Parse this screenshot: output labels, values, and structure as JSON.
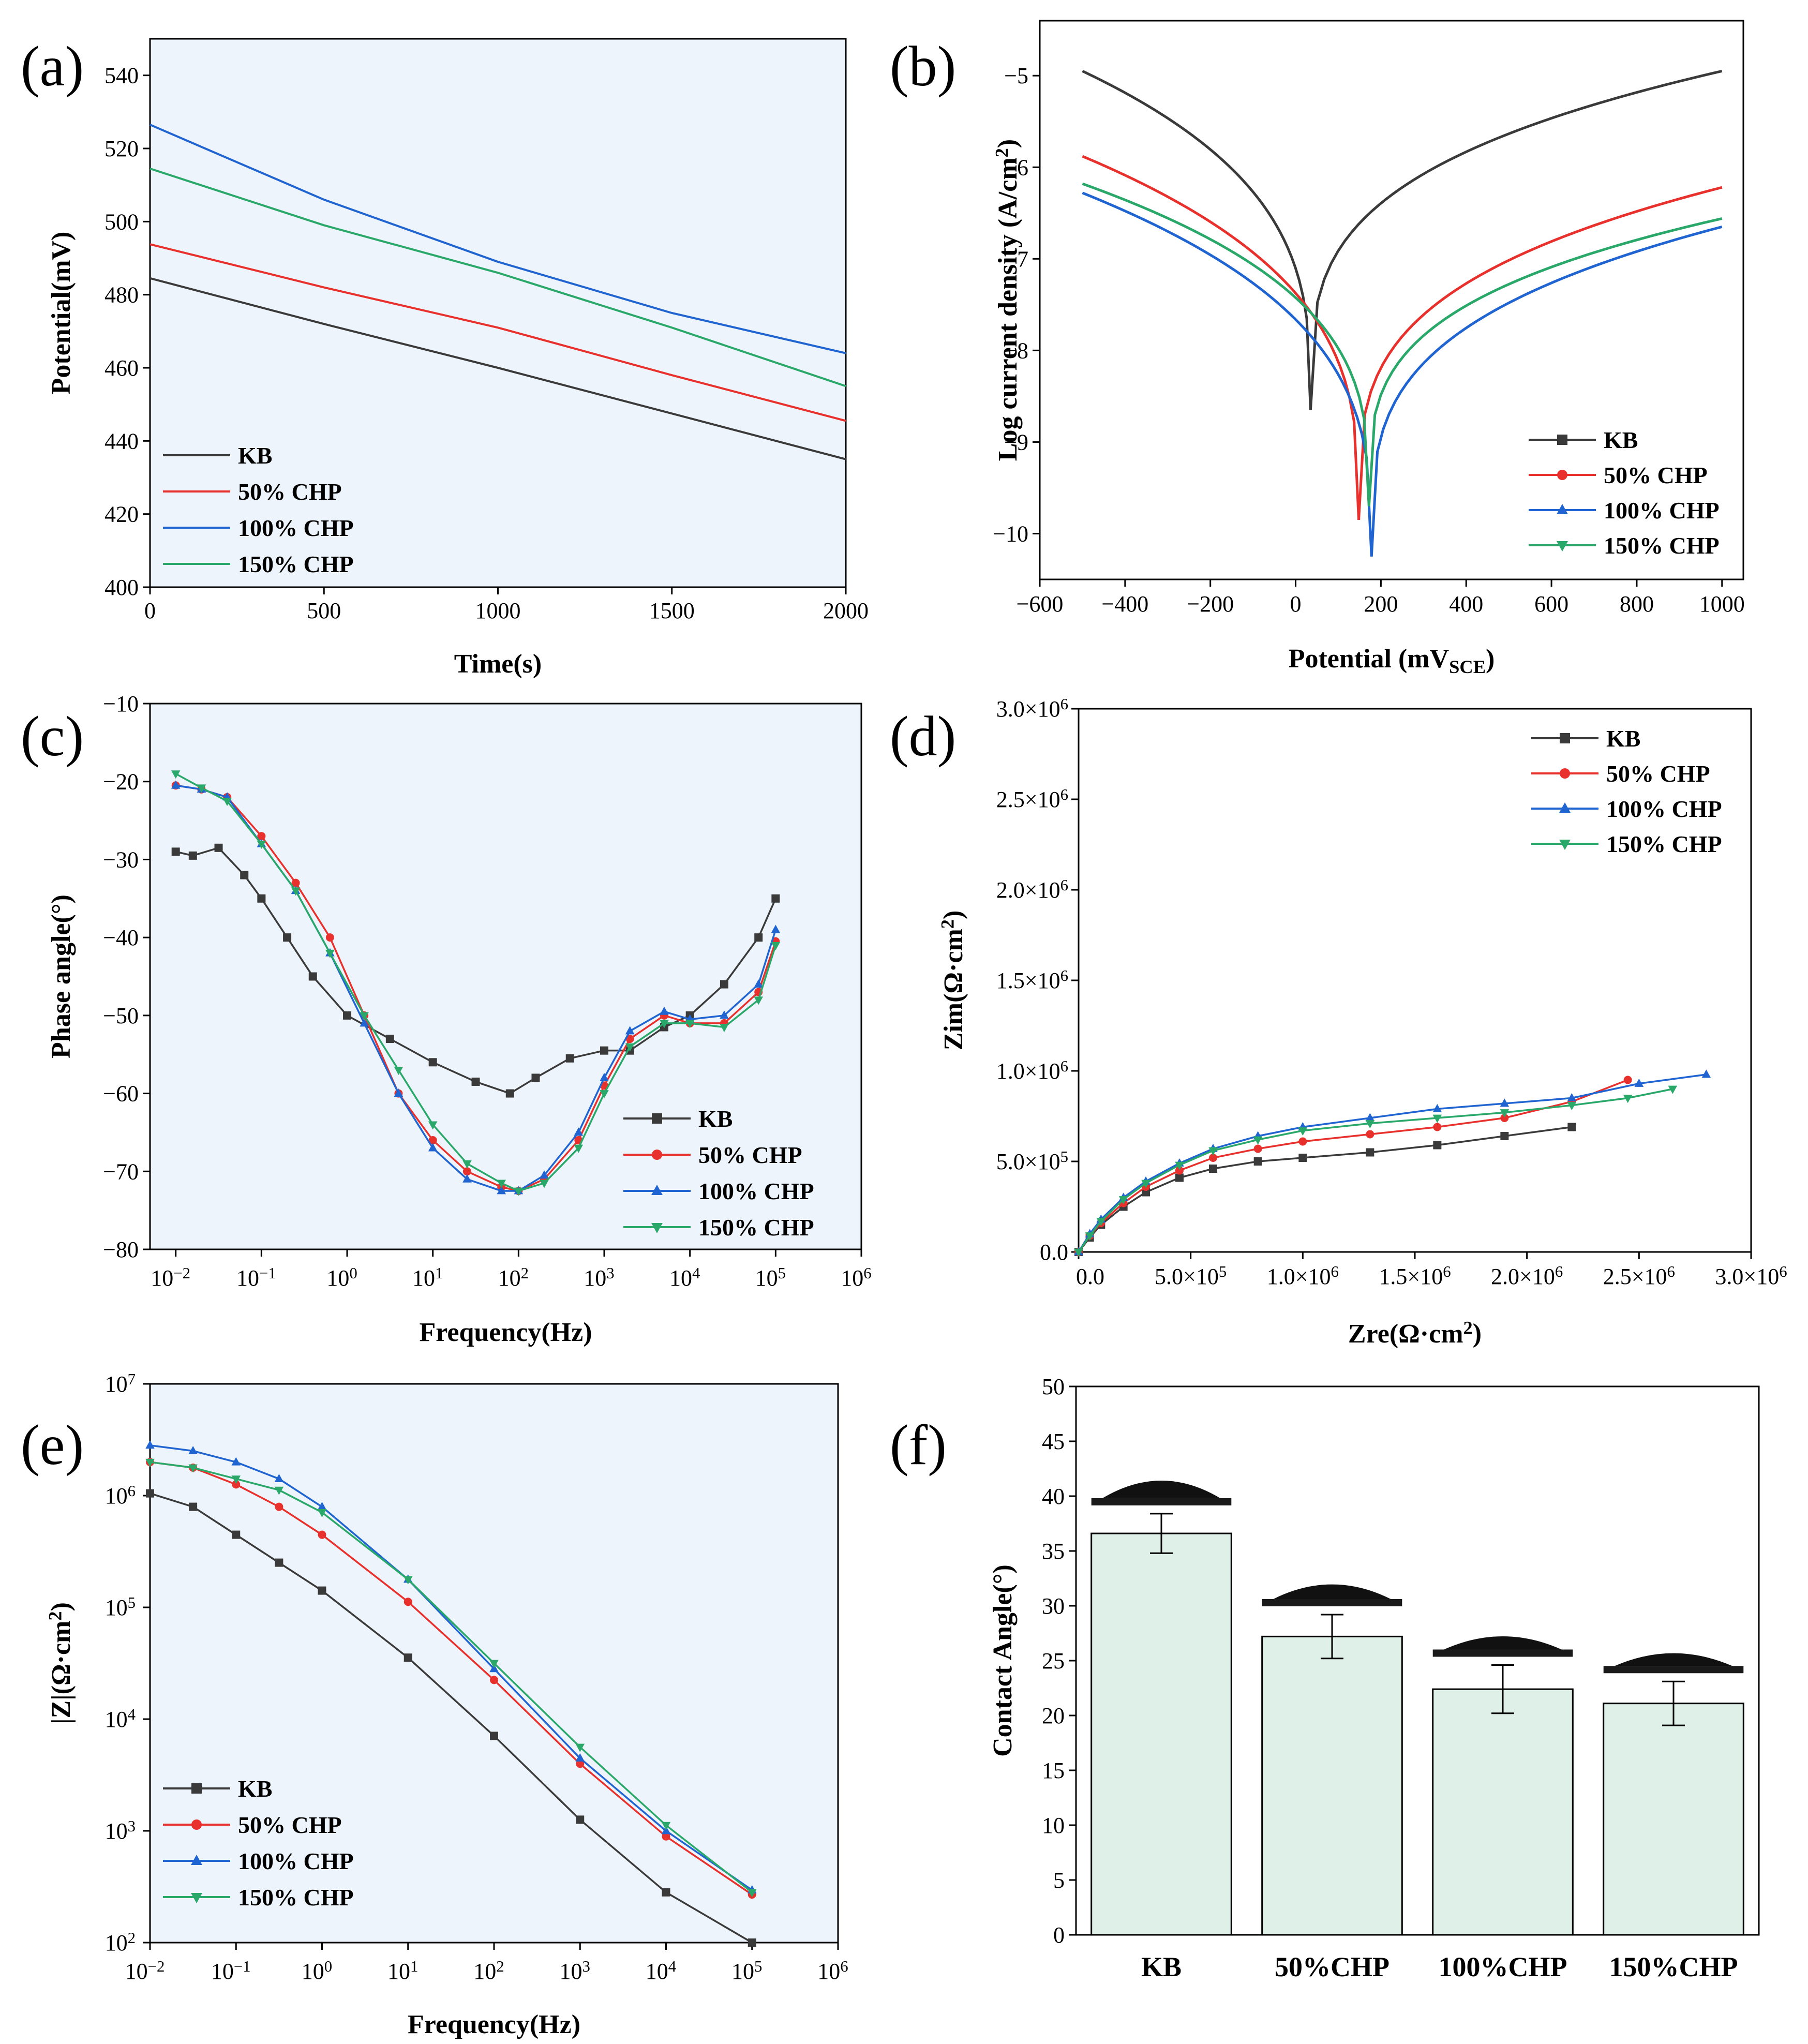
{
  "colors": {
    "KB": "#3a3a3a",
    "CHP50": "#e8302c",
    "CHP100": "#1f64d0",
    "CHP150": "#2aa86a",
    "plot_bg": "#eef4fb",
    "bar_fill": "#dff0e8"
  },
  "chart_data": [
    {
      "id": "a",
      "panel_label": "(a)",
      "type": "line",
      "xlabel": "Time(s)",
      "ylabel": "Potential(mV)",
      "xlim": [
        0,
        2000
      ],
      "ylim": [
        400,
        550
      ],
      "xticks": [
        0,
        500,
        1000,
        1500,
        2000
      ],
      "yticks": [
        400,
        420,
        440,
        460,
        480,
        500,
        520,
        540
      ],
      "xtick_labels": [
        "0",
        "500",
        "1000",
        "1500",
        "2000"
      ],
      "ytick_labels": [
        "400",
        "420",
        "440",
        "460",
        "480",
        "500",
        "520",
        "540"
      ],
      "legend": [
        "KB",
        "50% CHP",
        "100% CHP",
        "150% CHP"
      ],
      "series": [
        {
          "name": "KB",
          "x": [
            0,
            500,
            1000,
            1500,
            2000
          ],
          "y": [
            484.5,
            472,
            460,
            447.5,
            435
          ]
        },
        {
          "name": "50% CHP",
          "x": [
            0,
            500,
            1000,
            1500,
            2000
          ],
          "y": [
            493.8,
            482,
            471,
            458,
            445.5
          ]
        },
        {
          "name": "100% CHP",
          "x": [
            0,
            500,
            1000,
            1500,
            2000
          ],
          "y": [
            526.5,
            506,
            489,
            475,
            464
          ]
        },
        {
          "name": "150% CHP",
          "x": [
            0,
            500,
            1000,
            1500,
            2000
          ],
          "y": [
            514.5,
            499,
            486,
            471,
            455
          ]
        }
      ]
    },
    {
      "id": "b",
      "panel_label": "(b)",
      "type": "line",
      "xlabel": "Potential (mV",
      "xlabel_sub": "SCE",
      "xlabel_end": ")",
      "ylabel": "Log current density (A/cm",
      "ylabel_sup": "2",
      "ylabel_end": ")",
      "xlim": [
        -600,
        1050
      ],
      "ylim": [
        -10.5,
        -4.4
      ],
      "xticks": [
        -600,
        -400,
        -200,
        0,
        200,
        400,
        600,
        800,
        1000
      ],
      "yticks": [
        -10,
        -9,
        -8,
        -7,
        -6,
        -5
      ],
      "xtick_labels": [
        "−600",
        "−400",
        "−200",
        "0",
        "200",
        "400",
        "600",
        "800",
        "1000"
      ],
      "ytick_labels": [
        "−10",
        "−9",
        "−8",
        "−7",
        "−6",
        "−5"
      ],
      "legend": [
        "KB",
        "50% CHP",
        "100% CHP",
        "150% CHP"
      ],
      "series": [
        {
          "name": "KB",
          "ecorr": 35,
          "min": -8.65,
          "start": -4.95,
          "end": -4.95
        },
        {
          "name": "50% CHP",
          "ecorr": 148,
          "min": -9.85,
          "start": -5.88,
          "end": -6.22
        },
        {
          "name": "100% CHP",
          "ecorr": 178,
          "min": -10.25,
          "start": -6.28,
          "end": -6.65
        },
        {
          "name": "150% CHP",
          "ecorr": 172,
          "min": -9.7,
          "start": -6.18,
          "end": -6.56
        }
      ]
    },
    {
      "id": "c",
      "panel_label": "(c)",
      "type": "scatter",
      "xlabel": "Frequency(Hz)",
      "ylabel": "Phase angle(°)",
      "xscale": "log",
      "xlim_log": [
        -2.3,
        6
      ],
      "ylim": [
        -80,
        -10
      ],
      "ytick_labels": [
        "−80",
        "−70",
        "−60",
        "−50",
        "−40",
        "−30",
        "−20",
        "−10"
      ],
      "yticks": [
        -80,
        -70,
        -60,
        -50,
        -40,
        -30,
        -20,
        -10
      ],
      "xticks_log": [
        -2,
        -1,
        0,
        1,
        2,
        3,
        4,
        5,
        6
      ],
      "xtick_bases": [
        "10",
        "10",
        "10",
        "10",
        "10",
        "10",
        "10",
        "10",
        "10"
      ],
      "xtick_exps": [
        "−2",
        "−1",
        "0",
        "1",
        "2",
        "3",
        "4",
        "5",
        "6"
      ],
      "legend": [
        "KB",
        "50% CHP",
        "100% CHP",
        "150% CHP"
      ],
      "series": [
        {
          "name": "KB",
          "logf": [
            -2,
            -1.8,
            -1.5,
            -1.2,
            -1,
            -0.7,
            -0.4,
            0,
            0.5,
            1,
            1.5,
            1.9,
            2.2,
            2.6,
            3,
            3.3,
            3.7,
            4,
            4.4,
            4.8,
            5
          ],
          "y": [
            -29,
            -29.5,
            -28.5,
            -32,
            -35,
            -40,
            -45,
            -50,
            -53,
            -56,
            -58.5,
            -60,
            -58,
            -55.5,
            -54.5,
            -54.5,
            -51.5,
            -50,
            -46,
            -40,
            -35
          ]
        },
        {
          "name": "50% CHP",
          "logf": [
            -2,
            -1.7,
            -1.4,
            -1,
            -0.6,
            -0.2,
            0.2,
            0.6,
            1,
            1.4,
            1.8,
            2,
            2.3,
            2.7,
            3,
            3.3,
            3.7,
            4,
            4.4,
            4.8,
            5
          ],
          "y": [
            -20.5,
            -21,
            -22,
            -27,
            -33,
            -40,
            -50,
            -60,
            -66,
            -70,
            -72,
            -72.5,
            -71,
            -66,
            -59,
            -53,
            -50,
            -51,
            -51,
            -47,
            -40.5
          ]
        },
        {
          "name": "100% CHP",
          "logf": [
            -2,
            -1.7,
            -1.4,
            -1,
            -0.6,
            -0.2,
            0.2,
            0.6,
            1,
            1.4,
            1.8,
            2,
            2.3,
            2.7,
            3,
            3.3,
            3.7,
            4,
            4.4,
            4.8,
            5
          ],
          "y": [
            -20.5,
            -21,
            -22,
            -28,
            -34,
            -42,
            -51,
            -60,
            -67,
            -71,
            -72.5,
            -72.5,
            -70.5,
            -65,
            -58,
            -52,
            -49.5,
            -50.5,
            -50,
            -46,
            -39
          ]
        },
        {
          "name": "150% CHP",
          "logf": [
            -2,
            -1.7,
            -1.4,
            -1,
            -0.6,
            -0.2,
            0.2,
            0.6,
            1,
            1.4,
            1.8,
            2,
            2.3,
            2.7,
            3,
            3.3,
            3.7,
            4,
            4.4,
            4.8,
            5
          ],
          "y": [
            -19,
            -20.8,
            -22.5,
            -28,
            -34,
            -42,
            -50,
            -57,
            -64,
            -69,
            -71.5,
            -72.5,
            -71.5,
            -67,
            -60,
            -54,
            -51,
            -51,
            -51.5,
            -48,
            -41
          ]
        }
      ]
    },
    {
      "id": "d",
      "panel_label": "(d)",
      "type": "scatter",
      "xlabel": "Zre(Ω·cm",
      "xlabel_sup": "2",
      "xlabel_end": ")",
      "ylabel": "Zim(Ω·cm",
      "ylabel_sup": "2",
      "ylabel_end": ")",
      "xlim": [
        0,
        3000000
      ],
      "ylim": [
        0,
        3000000
      ],
      "xticks": [
        0,
        500000,
        1000000,
        1500000,
        2000000,
        2500000,
        3000000
      ],
      "yticks": [
        0,
        500000,
        1000000,
        1500000,
        2000000,
        2500000,
        3000000
      ],
      "xtick_mant": [
        "0.0",
        "5.0×10",
        "1.0×10",
        "1.5×10",
        "2.0×10",
        "2.5×10",
        "3.0×10"
      ],
      "xtick_exp": [
        "",
        "5",
        "6",
        "6",
        "6",
        "6",
        "6"
      ],
      "ytick_mant": [
        "0.0",
        "5.0×10",
        "1.0×10",
        "1.5×10",
        "2.0×10",
        "2.5×10",
        "3.0×10"
      ],
      "ytick_exp": [
        "",
        "5",
        "6",
        "6",
        "6",
        "6",
        "6"
      ],
      "legend": [
        "KB",
        "50% CHP",
        "100% CHP",
        "150% CHP"
      ],
      "series": [
        {
          "name": "KB",
          "x": [
            0,
            50000,
            100000,
            200000,
            300000,
            450000,
            600000,
            800000,
            1000000,
            1300000,
            1600000,
            1900000,
            2200000
          ],
          "y": [
            0,
            80000,
            150000,
            250000,
            330000,
            410000,
            460000,
            500000,
            520000,
            550000,
            590000,
            640000,
            690000
          ]
        },
        {
          "name": "50% CHP",
          "x": [
            0,
            50000,
            100000,
            200000,
            300000,
            450000,
            600000,
            800000,
            1000000,
            1300000,
            1600000,
            1900000,
            2200000,
            2450000
          ],
          "y": [
            0,
            90000,
            160000,
            270000,
            360000,
            450000,
            520000,
            570000,
            610000,
            650000,
            690000,
            740000,
            830000,
            950000
          ]
        },
        {
          "name": "100% CHP",
          "x": [
            0,
            50000,
            100000,
            200000,
            300000,
            450000,
            600000,
            800000,
            1000000,
            1300000,
            1600000,
            1900000,
            2200000,
            2500000,
            2800000
          ],
          "y": [
            0,
            100000,
            180000,
            300000,
            390000,
            490000,
            570000,
            640000,
            690000,
            740000,
            790000,
            820000,
            850000,
            930000,
            980000
          ]
        },
        {
          "name": "150% CHP",
          "x": [
            0,
            50000,
            100000,
            200000,
            300000,
            450000,
            600000,
            800000,
            1000000,
            1300000,
            1600000,
            1900000,
            2200000,
            2450000,
            2650000
          ],
          "y": [
            0,
            90000,
            170000,
            290000,
            380000,
            480000,
            560000,
            620000,
            670000,
            710000,
            740000,
            770000,
            810000,
            850000,
            900000
          ]
        }
      ]
    },
    {
      "id": "e",
      "panel_label": "(e)",
      "type": "scatter",
      "xlabel": "Frequency(Hz)",
      "ylabel": "|Z|(Ω·cm",
      "ylabel_sup": "2",
      "ylabel_end": ")",
      "xscale": "log",
      "yscale": "log",
      "xlim_log": [
        -2,
        6
      ],
      "ylim_log": [
        2,
        7
      ],
      "xticks_log": [
        -2,
        -1,
        0,
        1,
        2,
        3,
        4,
        5,
        6
      ],
      "yticks_log": [
        2,
        3,
        4,
        5,
        6,
        7
      ],
      "xtick_exps": [
        "−2",
        "−1",
        "0",
        "1",
        "2",
        "3",
        "4",
        "5",
        "6"
      ],
      "ytick_exps": [
        "2",
        "3",
        "4",
        "5",
        "6",
        "7"
      ],
      "tick_base": "10",
      "legend": [
        "KB",
        "50% CHP",
        "100% CHP",
        "150% CHP"
      ],
      "series": [
        {
          "name": "KB",
          "logf": [
            -2,
            -1.5,
            -1,
            -0.5,
            0,
            1,
            2,
            3,
            4,
            5
          ],
          "logz": [
            6.02,
            5.9,
            5.65,
            5.4,
            5.15,
            4.55,
            3.85,
            3.1,
            2.45,
            2.0
          ]
        },
        {
          "name": "50% CHP",
          "logf": [
            -2,
            -1.5,
            -1,
            -0.5,
            0,
            1,
            2,
            3,
            4,
            5
          ],
          "logz": [
            6.3,
            6.25,
            6.1,
            5.9,
            5.65,
            5.05,
            4.35,
            3.6,
            2.95,
            2.43
          ]
        },
        {
          "name": "100% CHP",
          "logf": [
            -2,
            -1.5,
            -1,
            -0.5,
            0,
            1,
            2,
            3,
            4,
            5
          ],
          "logz": [
            6.45,
            6.4,
            6.3,
            6.15,
            5.9,
            5.25,
            4.45,
            3.65,
            3.0,
            2.47
          ]
        },
        {
          "name": "150% CHP",
          "logf": [
            -2,
            -1.5,
            -1,
            -0.5,
            0,
            1,
            2,
            3,
            4,
            5
          ],
          "logz": [
            6.3,
            6.25,
            6.15,
            6.05,
            5.85,
            5.25,
            4.5,
            3.75,
            3.05,
            2.45
          ]
        }
      ]
    },
    {
      "id": "f",
      "panel_label": "(f)",
      "type": "bar",
      "xlabel": "",
      "ylabel": "Contact Angle(°)",
      "ylim": [
        0,
        50
      ],
      "yticks": [
        0,
        5,
        10,
        15,
        20,
        25,
        30,
        35,
        40,
        45,
        50
      ],
      "ytick_labels": [
        "0",
        "5",
        "10",
        "15",
        "20",
        "25",
        "30",
        "35",
        "40",
        "45",
        "50"
      ],
      "categories": [
        "KB",
        "50%CHP",
        "100%CHP",
        "150%CHP"
      ],
      "values": [
        36.6,
        27.2,
        22.4,
        21.1
      ],
      "errors": [
        1.8,
        2.0,
        2.2,
        2.0
      ]
    }
  ]
}
